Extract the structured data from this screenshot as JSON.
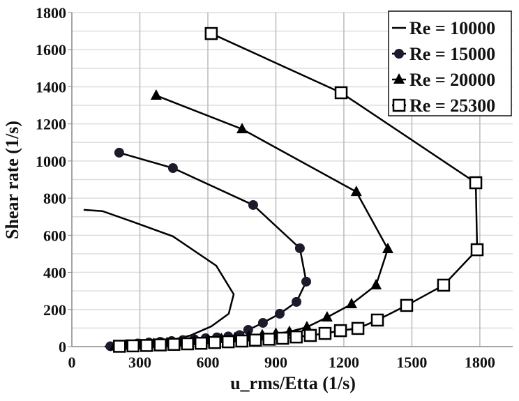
{
  "chart_data": {
    "type": "line",
    "title": "",
    "xlabel": "u_rms/Etta (1/s)",
    "ylabel": "Shear rate (1/s)",
    "xlim": [
      0,
      1945
    ],
    "ylim": [
      0,
      1800
    ],
    "xticks": [
      "0",
      "300",
      "600",
      "900",
      "1200",
      "1500",
      "1800"
    ],
    "xtick_values": [
      0,
      300,
      600,
      900,
      1200,
      1500,
      1800
    ],
    "yticks": [
      "0",
      "200",
      "400",
      "600",
      "800",
      "1000",
      "1200",
      "1400",
      "1600",
      "1800"
    ],
    "ytick_values": [
      0,
      200,
      400,
      600,
      800,
      1000,
      1200,
      1400,
      1600,
      1800
    ],
    "grid": true,
    "legend_position": "top-right",
    "series": [
      {
        "name": "Re = 10000",
        "marker": "none",
        "x": [
          52,
          135,
          268,
          446,
          637,
          714,
          692,
          615,
          523,
          422,
          300,
          145
        ],
        "y": [
          737,
          730,
          673,
          594,
          436,
          282,
          177,
          109,
          60,
          30,
          15,
          0
        ]
      },
      {
        "name": "Re = 15000",
        "marker": "circle",
        "x": [
          209,
          446,
          800,
          1006,
          1034,
          991,
          917,
          843,
          778,
          740,
          690,
          640,
          590,
          540,
          490,
          440,
          390,
          340,
          290,
          240,
          200,
          170
        ],
        "y": [
          1045,
          962,
          763,
          530,
          350,
          241,
          177,
          128,
          90,
          62,
          55,
          50,
          45,
          40,
          35,
          30,
          26,
          22,
          17,
          12,
          7,
          2
        ]
      },
      {
        "name": "Re = 20000",
        "marker": "triangle",
        "x": [
          372,
          751,
          1255,
          1394,
          1342,
          1234,
          1126,
          1037,
          960,
          900,
          840,
          780,
          720,
          660,
          600,
          540,
          480,
          420,
          360,
          300,
          240,
          190
        ],
        "y": [
          1353,
          1172,
          834,
          526,
          331,
          229,
          158,
          105,
          80,
          70,
          62,
          55,
          48,
          42,
          36,
          30,
          25,
          20,
          15,
          10,
          6,
          2
        ]
      },
      {
        "name": "Re = 25300",
        "marker": "square",
        "x": [
          615,
          1188,
          1782,
          1788,
          1640,
          1477,
          1348,
          1262,
          1185,
          1117,
          1052,
          990,
          930,
          870,
          810,
          750,
          690,
          630,
          570,
          510,
          450,
          390,
          330,
          270,
          210
        ],
        "y": [
          1687,
          1368,
          883,
          522,
          331,
          222,
          143,
          98,
          86,
          71,
          60,
          52,
          45,
          40,
          35,
          30,
          26,
          22,
          18,
          15,
          12,
          9,
          6,
          4,
          2
        ]
      }
    ]
  }
}
